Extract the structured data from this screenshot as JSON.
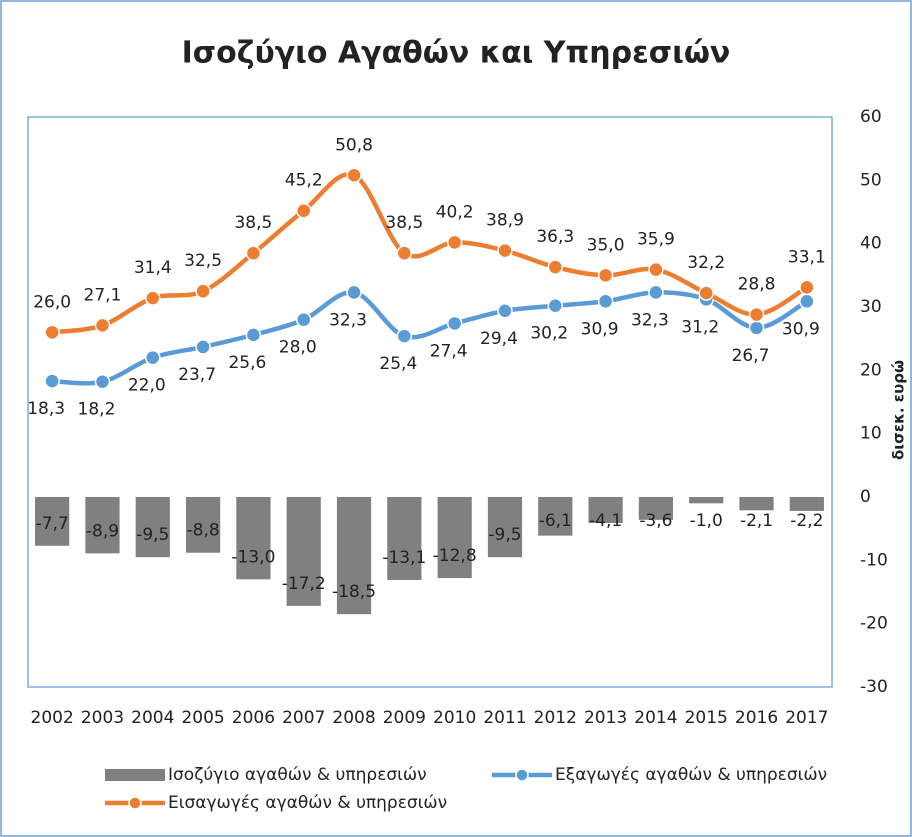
{
  "chart_data": {
    "type": "combo",
    "title": "Ισοζύγιο Αγαθών και Υπηρεσιών",
    "y_label": "δισεκ. ευρώ",
    "categories": [
      "2002",
      "2003",
      "2004",
      "2005",
      "2006",
      "2007",
      "2008",
      "2009",
      "2010",
      "2011",
      "2012",
      "2013",
      "2014",
      "2015",
      "2016",
      "2017"
    ],
    "series": [
      {
        "name": "Ισοζύγιο αγαθών & υπηρεσιών",
        "type": "bar",
        "color": "#808080",
        "values": [
          -7.7,
          -8.9,
          -9.5,
          -8.8,
          -13.0,
          -17.2,
          -18.5,
          -13.1,
          -12.8,
          -9.5,
          -6.1,
          -4.1,
          -3.6,
          -1.0,
          -2.1,
          -2.2
        ],
        "value_labels": [
          "-7,7",
          "-8,9",
          "-9,5",
          "-8,8",
          "-13,0",
          "-17,2",
          "-18,5",
          "-13,1",
          "-12,8",
          "-9,5",
          "-6,1",
          "-4,1",
          "-3,6",
          "-1,0",
          "-2,1",
          "-2,2"
        ]
      },
      {
        "name": "Εξαγωγές αγαθών & υπηρεσιών",
        "type": "line",
        "color": "#5b9bd5",
        "values": [
          18.3,
          18.2,
          22.0,
          23.7,
          25.6,
          28.0,
          32.3,
          25.4,
          27.4,
          29.4,
          30.2,
          30.9,
          32.3,
          31.2,
          26.7,
          30.9
        ],
        "value_labels": [
          "18,3",
          "18,2",
          "22,0",
          "23,7",
          "25,6",
          "28,0",
          "32,3",
          "25,4",
          "27,4",
          "29,4",
          "30,2",
          "30,9",
          "32,3",
          "31,2",
          "26,7",
          "30,9"
        ]
      },
      {
        "name": "Εισαγωγές αγαθών & υπηρεσιών",
        "type": "line",
        "color": "#ed7d31",
        "values": [
          26.0,
          27.1,
          31.4,
          32.5,
          38.5,
          45.2,
          50.8,
          38.5,
          40.2,
          38.9,
          36.3,
          35.0,
          35.9,
          32.2,
          28.8,
          33.1
        ],
        "value_labels": [
          "26,0",
          "27,1",
          "31,4",
          "32,5",
          "38,5",
          "45,2",
          "50,8",
          "38,5",
          "40,2",
          "38,9",
          "36,3",
          "35,0",
          "35,9",
          "32,2",
          "28,8",
          "33,1"
        ]
      }
    ],
    "ylim": [
      -30,
      60
    ],
    "yticks": [
      -30,
      -20,
      -10,
      0,
      10,
      20,
      30,
      40,
      50,
      60
    ],
    "y_axis_side": "right"
  }
}
